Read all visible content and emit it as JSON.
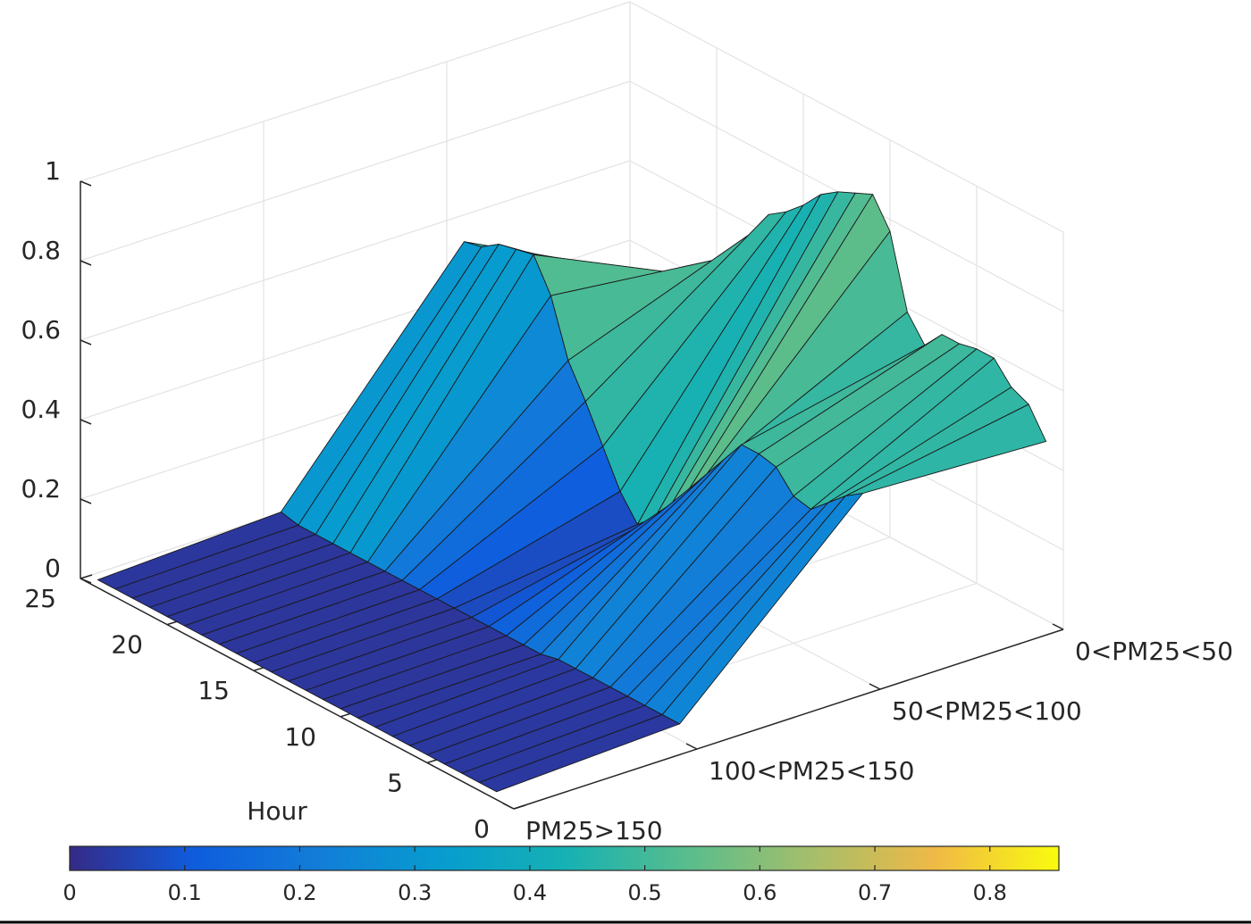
{
  "chart_data": {
    "type": "surface",
    "x_label": "Hour",
    "x": [
      1,
      2,
      3,
      4,
      5,
      6,
      7,
      8,
      9,
      10,
      11,
      12,
      13,
      14,
      15,
      16,
      17,
      18,
      19,
      20,
      21,
      22,
      23,
      24
    ],
    "xlim": [
      0,
      25
    ],
    "xticks": [
      0,
      5,
      10,
      15,
      20,
      25
    ],
    "categories": [
      "PM25>150",
      "100<PM25<150",
      "50<PM25<100",
      "0<PM25<50"
    ],
    "z": [
      [
        0.02,
        0.02,
        0.02,
        0.02,
        0.02,
        0.02,
        0.02,
        0.02,
        0.02,
        0.02,
        0.02,
        0.02,
        0.02,
        0.02,
        0.02,
        0.02,
        0.02,
        0.02,
        0.02,
        0.02,
        0.02,
        0.02,
        0.02,
        0.02
      ],
      [
        0.04,
        0.04,
        0.04,
        0.04,
        0.04,
        0.04,
        0.04,
        0.04,
        0.03,
        0.03,
        0.03,
        0.03,
        0.03,
        0.03,
        0.03,
        0.03,
        0.03,
        0.03,
        0.03,
        0.03,
        0.03,
        0.03,
        0.03,
        0.04
      ],
      [
        0.47,
        0.44,
        0.4,
        0.36,
        0.37,
        0.42,
        0.43,
        0.43,
        0.37,
        0.31,
        0.25,
        0.19,
        0.13,
        0.09,
        0.15,
        0.24,
        0.33,
        0.41,
        0.55,
        0.63,
        0.62,
        0.61,
        0.58,
        0.57
      ],
      [
        0.45,
        0.52,
        0.54,
        0.59,
        0.59,
        0.58,
        0.58,
        0.53,
        0.59,
        0.77,
        0.84,
        0.82,
        0.8,
        0.77,
        0.72,
        0.68,
        0.65,
        0.58,
        0.5,
        0.42,
        0.36,
        0.33,
        0.33,
        0.34
      ]
    ],
    "zlim": [
      0,
      1
    ],
    "zticks": [
      0,
      0.2,
      0.4,
      0.6,
      0.8,
      1
    ],
    "grid": true,
    "colormap": "parula",
    "clim": [
      0,
      0.86
    ],
    "colorbar_ticks": [
      0,
      0.1,
      0.2,
      0.3,
      0.4,
      0.5,
      0.6,
      0.7,
      0.8
    ]
  }
}
